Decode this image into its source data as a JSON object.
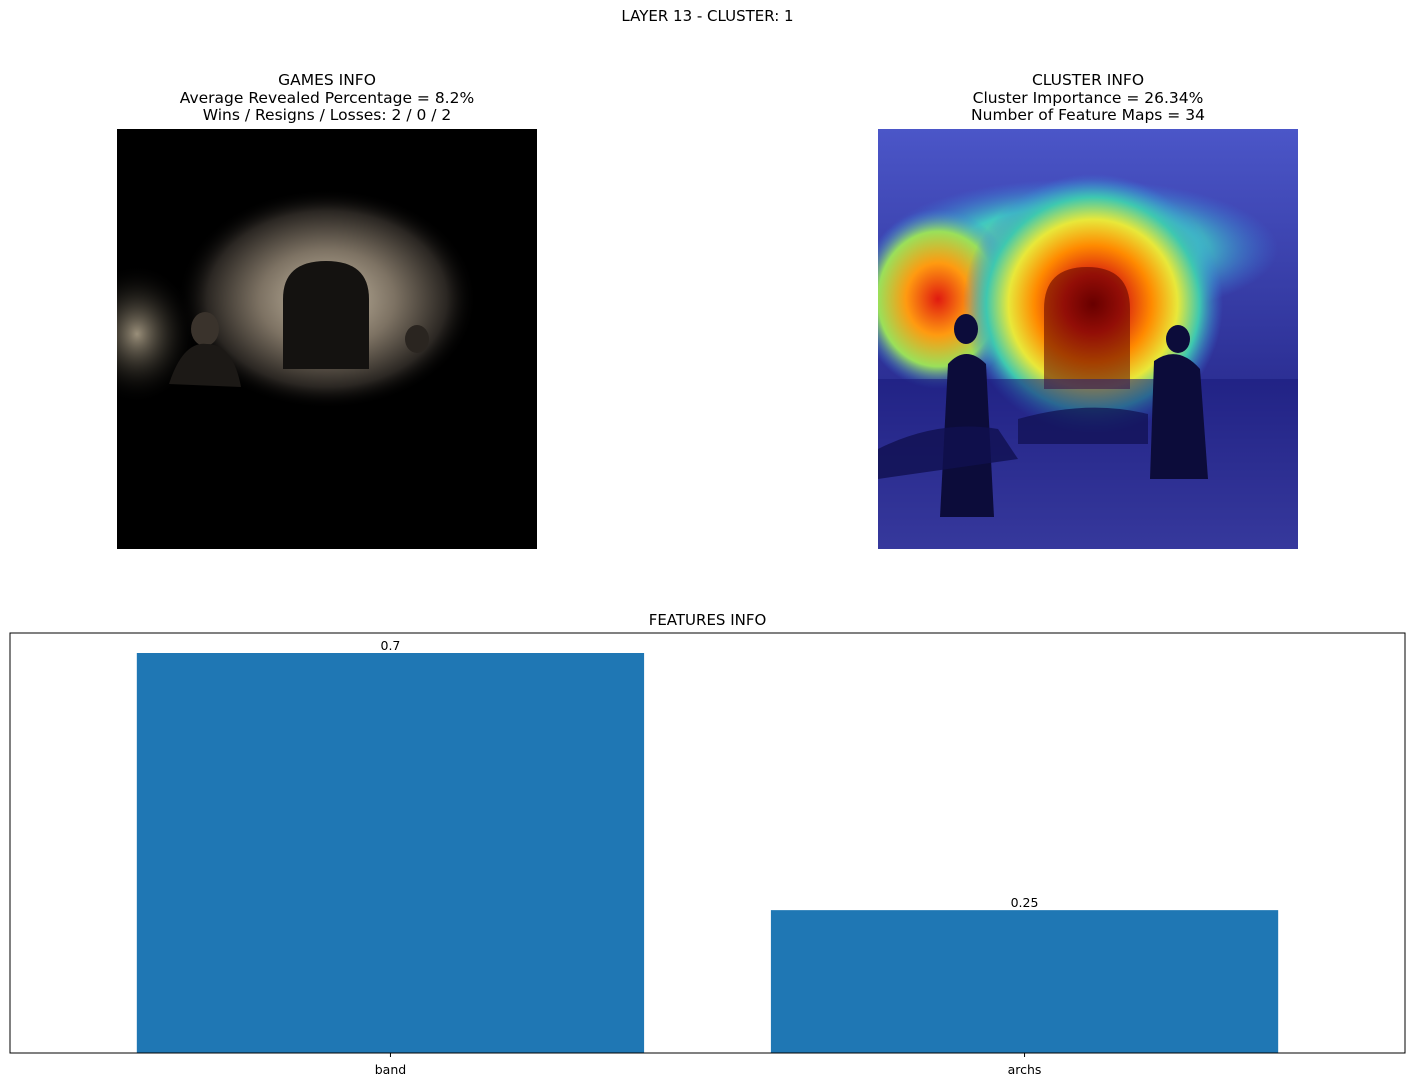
{
  "figure": {
    "suptitle": "LAYER 13 - CLUSTER: 1"
  },
  "games_panel": {
    "title": "GAMES INFO",
    "line1": "Average Revealed Percentage = 8.2%",
    "line2": "Wins / Resigns / Losses: 2 / 0 / 2"
  },
  "cluster_panel": {
    "title": "CLUSTER INFO",
    "line1": "Cluster Importance = 26.34%",
    "line2": "Number of Feature Maps = 34"
  },
  "colors": {
    "bar": "#1f77b4",
    "axis": "#000000"
  },
  "chart_data": {
    "type": "bar",
    "title": "FEATURES INFO",
    "categories": [
      "band",
      "archs"
    ],
    "values": [
      0.7,
      0.25
    ],
    "value_labels": [
      "0.7",
      "0.25"
    ],
    "xlabel": "",
    "ylabel": "",
    "ylim": [
      0,
      0.735
    ],
    "grid": false,
    "y_ticks_visible": false
  }
}
